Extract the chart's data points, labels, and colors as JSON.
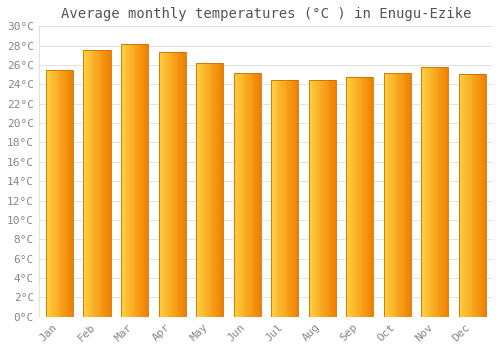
{
  "months": [
    "Jan",
    "Feb",
    "Mar",
    "Apr",
    "May",
    "Jun",
    "Jul",
    "Aug",
    "Sep",
    "Oct",
    "Nov",
    "Dec"
  ],
  "values": [
    25.5,
    27.5,
    28.2,
    27.3,
    26.2,
    25.2,
    24.5,
    24.5,
    24.8,
    25.2,
    25.8,
    25.1
  ],
  "bar_color_left": "#FFD040",
  "bar_color_right": "#F08000",
  "bar_edge_color": "#C87000",
  "background_color": "#FFFFFF",
  "grid_color": "#DDDDDD",
  "title": "Average monthly temperatures (°C ) in Enugu-Ezike",
  "ylim": [
    0,
    30
  ],
  "ytick_step": 2,
  "title_fontsize": 10,
  "tick_fontsize": 8,
  "font_color": "#888888",
  "font_family": "monospace"
}
